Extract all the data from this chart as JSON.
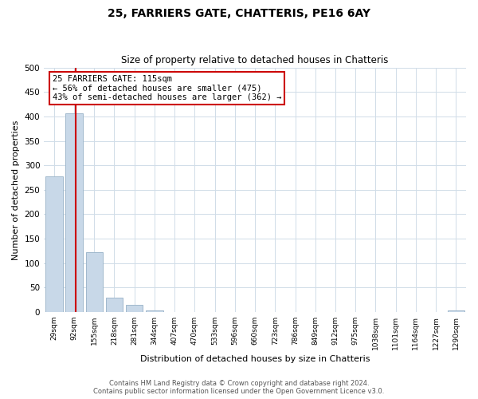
{
  "title": "25, FARRIERS GATE, CHATTERIS, PE16 6AY",
  "subtitle": "Size of property relative to detached houses in Chatteris",
  "xlabel": "Distribution of detached houses by size in Chatteris",
  "ylabel": "Number of detached properties",
  "bar_labels": [
    "29sqm",
    "92sqm",
    "155sqm",
    "218sqm",
    "281sqm",
    "344sqm",
    "407sqm",
    "470sqm",
    "533sqm",
    "596sqm",
    "660sqm",
    "723sqm",
    "786sqm",
    "849sqm",
    "912sqm",
    "975sqm",
    "1038sqm",
    "1101sqm",
    "1164sqm",
    "1227sqm",
    "1290sqm"
  ],
  "bar_values": [
    277,
    406,
    122,
    29,
    15,
    4,
    0,
    0,
    0,
    0,
    0,
    0,
    0,
    0,
    0,
    0,
    0,
    0,
    0,
    0,
    3
  ],
  "bar_color": "#c8d8e8",
  "bar_edge_color": "#a0b8cc",
  "ylim": [
    0,
    500
  ],
  "yticks": [
    0,
    50,
    100,
    150,
    200,
    250,
    300,
    350,
    400,
    450,
    500
  ],
  "property_line_color": "#cc0000",
  "annotation_text": "25 FARRIERS GATE: 115sqm\n← 56% of detached houses are smaller (475)\n43% of semi-detached houses are larger (362) →",
  "annotation_box_color": "#ffffff",
  "annotation_box_edge": "#cc0000",
  "footer_line1": "Contains HM Land Registry data © Crown copyright and database right 2024.",
  "footer_line2": "Contains public sector information licensed under the Open Government Licence v3.0.",
  "background_color": "#ffffff",
  "grid_color": "#d0dce8"
}
